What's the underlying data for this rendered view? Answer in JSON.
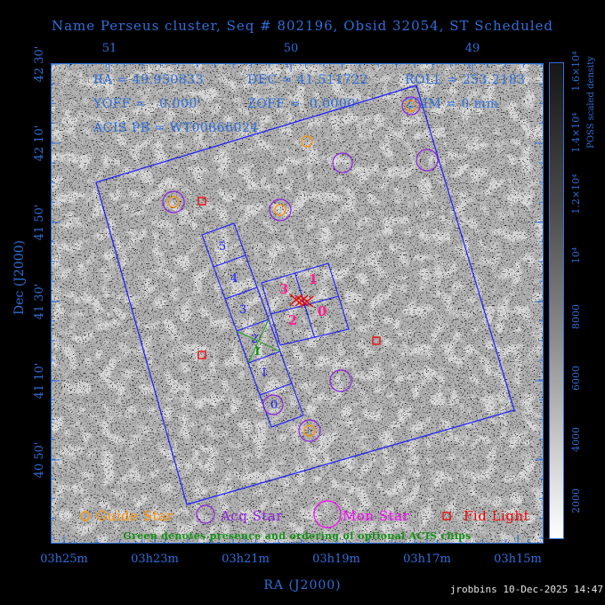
{
  "title": "Name Perseus cluster, Seq # 802196, Obsid 32054, ST Scheduled",
  "info": {
    "ra": "RA = 49.950833",
    "dec": "DEC = 41.511722",
    "roll": "ROLL = 253.2183",
    "yoff": "YOFF =   0.000'",
    "zoff": "ZOFF =  0.0000'",
    "zsim": "ZSIM = 0 mm",
    "acis_pb": "ACIS PB = WT00866024"
  },
  "axes": {
    "top": {
      "labels": [
        "51",
        "50",
        "49"
      ]
    },
    "bottom": {
      "labels": [
        "03h25m",
        "03h23m",
        "03h21m",
        "03h19m",
        "03h17m",
        "03h15m"
      ],
      "title": "RA (J2000)"
    },
    "left": {
      "labels": [
        "42 30'",
        "42 10'",
        "41 50'",
        "41 30'",
        "41 10'",
        "40 50'"
      ],
      "title": "Dec (J2000)"
    },
    "colorbar": {
      "labels": [
        "2000",
        "4000",
        "6000",
        "8000",
        "10⁴",
        "1.2×10⁴",
        "1.4×10⁴",
        "1.6×10⁴"
      ],
      "title": "POSS scaled density"
    }
  },
  "detector": {
    "s_chips": [
      "5",
      "4",
      "3",
      "2",
      "1",
      "0"
    ],
    "i_chips": [
      "3",
      "1",
      "2",
      "0"
    ],
    "optional_chip_order": "1"
  },
  "legend": {
    "guide": "Guide Star",
    "acq": "Acq Star",
    "mon": "Mon Star",
    "fid": "Fid Light",
    "note": "Green denotes presence and ordering of optional ACIS chips"
  },
  "footer": "jrobbins 10-Dec-2025 14:47",
  "colors": {
    "axis_text": "#2e6fdb",
    "detector_outline": "#1a1aff",
    "i_chip_numbers": "#ff1f8f",
    "optional_green": "#2aa02a",
    "guide_star": "#ff9100",
    "acq_star": "#9020e0",
    "mon_star": "#ff00ff",
    "fid_light": "#ee0000",
    "aimpoint": "#ee0000",
    "sky_background": "#d9d9d9"
  }
}
